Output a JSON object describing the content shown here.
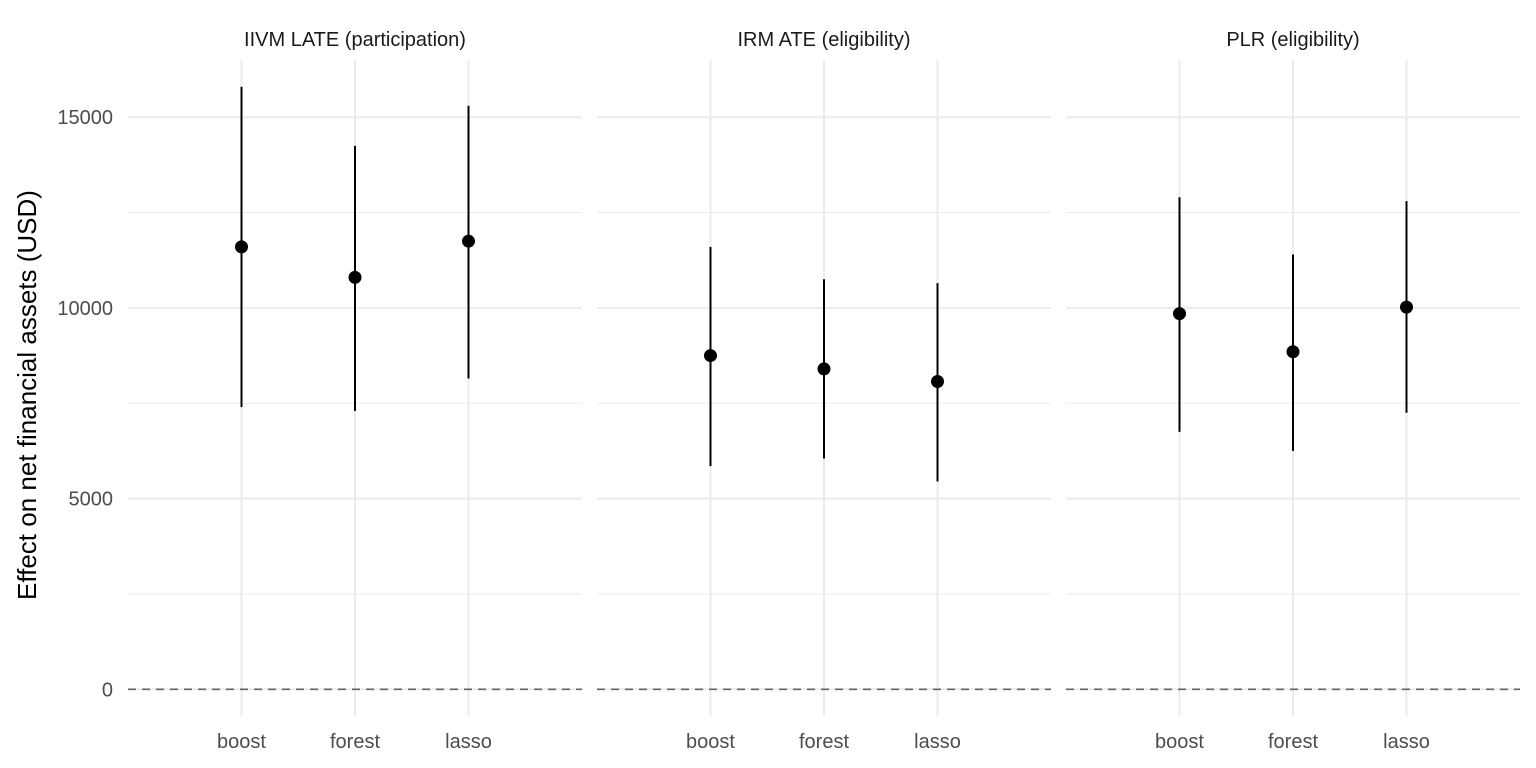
{
  "chart_data": {
    "type": "pointrange",
    "ylabel": "Effect on net financial assets (USD)",
    "xlabel": "",
    "ylim": [
      -700,
      16500
    ],
    "yticks": [
      0,
      5000,
      10000,
      15000
    ],
    "ytick_labels": [
      "0",
      "5000",
      "10000",
      "15000"
    ],
    "reference_line": {
      "y": 0,
      "style": "dashed"
    },
    "categories": [
      "boost",
      "forest",
      "lasso"
    ],
    "grid": true,
    "colors": {
      "point": "#000000",
      "grid": "#ebebeb",
      "refline": "#666666"
    },
    "facets": [
      {
        "title": "IIVM LATE (participation)",
        "points": [
          {
            "category": "boost",
            "estimate": 11600,
            "lower": 7400,
            "upper": 15800
          },
          {
            "category": "forest",
            "estimate": 10800,
            "lower": 7300,
            "upper": 14250
          },
          {
            "category": "lasso",
            "estimate": 11750,
            "lower": 8150,
            "upper": 15300
          }
        ]
      },
      {
        "title": "IRM ATE (eligibility)",
        "points": [
          {
            "category": "boost",
            "estimate": 8750,
            "lower": 5850,
            "upper": 11600
          },
          {
            "category": "forest",
            "estimate": 8400,
            "lower": 6050,
            "upper": 10750
          },
          {
            "category": "lasso",
            "estimate": 8070,
            "lower": 5450,
            "upper": 10650
          }
        ]
      },
      {
        "title": "PLR (eligibility)",
        "points": [
          {
            "category": "boost",
            "estimate": 9850,
            "lower": 6750,
            "upper": 12900
          },
          {
            "category": "forest",
            "estimate": 8850,
            "lower": 6250,
            "upper": 11400
          },
          {
            "category": "lasso",
            "estimate": 10020,
            "lower": 7250,
            "upper": 12800
          }
        ]
      }
    ]
  }
}
